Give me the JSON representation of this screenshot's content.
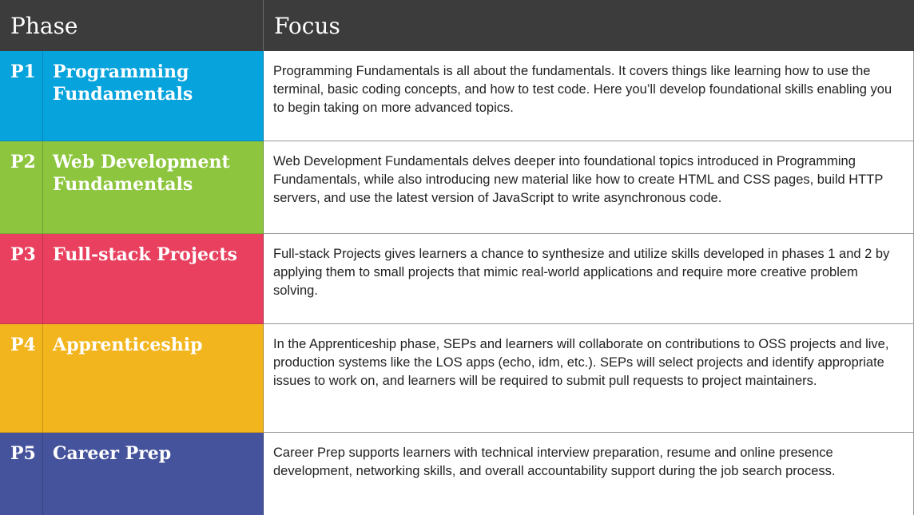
{
  "header": {
    "phase_label": "Phase",
    "focus_label": "Focus",
    "background": "#3c3c3c"
  },
  "phases": [
    {
      "code": "P1",
      "name": "Programming Fundamentals",
      "color": "#06a3dd",
      "description": "Programming Fundamentals is all about the fundamentals. It covers things like learning how to use the terminal, basic coding concepts, and how to test code. Here you’ll develop foundational skills enabling you to begin taking on more advanced topics."
    },
    {
      "code": "P2",
      "name": "Web Development Fundamentals",
      "color": "#8dc53e",
      "description": "Web Development Fundamentals delves deeper into foundational topics introduced in Programming Fundamentals, while also introducing new material like how to create HTML and CSS pages, build HTTP servers, and use the latest version of JavaScript to write asynchronous code."
    },
    {
      "code": "P3",
      "name": "Full-stack Projects",
      "color": "#e8405e",
      "description": "Full-stack Projects gives learners a chance to synthesize and utilize skills developed in phases 1 and 2 by applying them to small projects that mimic real-world applications and require more creative problem solving."
    },
    {
      "code": "P4",
      "name": "Apprenticeship",
      "color": "#f2b51e",
      "description": "In the Apprenticeship phase, SEPs and learners will collaborate on contributions to OSS projects and live, production systems like the LOS apps (echo, idm, etc.). SEPs will select projects and identify appropriate issues to work on, and learners will be required to submit pull requests to project maintainers."
    },
    {
      "code": "P5",
      "name": "Career Prep",
      "color": "#45539c",
      "description": "Career Prep supports learners with technical interview preparation, resume and online presence development, networking skills, and overall accountability support during the job search process."
    }
  ]
}
